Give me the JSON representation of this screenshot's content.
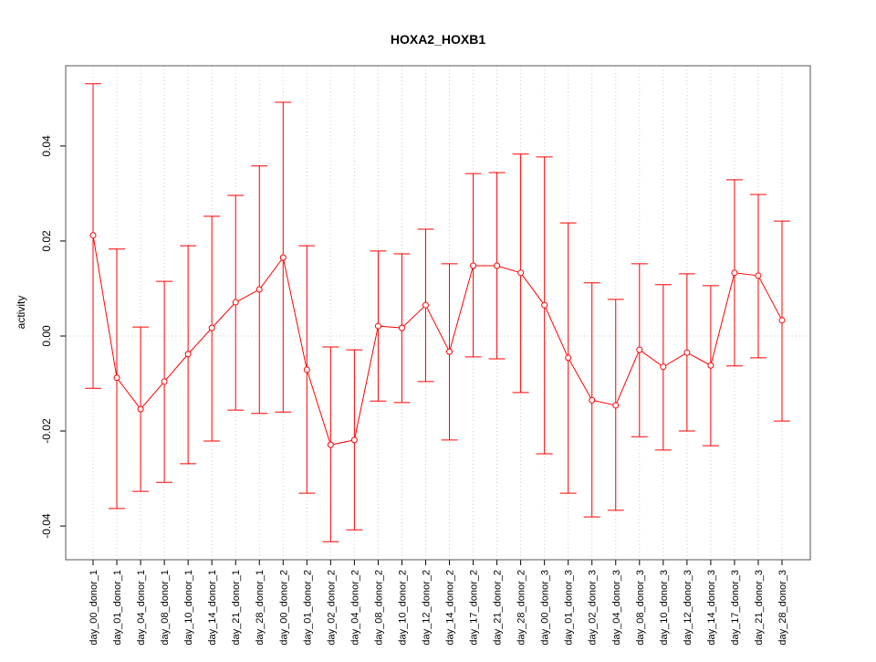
{
  "chart_data": {
    "type": "line",
    "title": "HOXA2_HOXB1",
    "xlabel": "",
    "ylabel": "activity",
    "ylim": [
      -0.0471,
      0.0569
    ],
    "yticks": [
      -0.04,
      -0.02,
      0.0,
      0.02,
      0.04
    ],
    "ytick_labels": [
      "-0.04",
      "-0.02",
      "0.00",
      "0.02",
      "0.04"
    ],
    "grid": true,
    "color": "#ff0000",
    "categories": [
      "day_00_donor_1",
      "day_01_donor_1",
      "day_04_donor_1",
      "day_08_donor_1",
      "day_10_donor_1",
      "day_14_donor_1",
      "day_21_donor_1",
      "day_28_donor_1",
      "day_00_donor_2",
      "day_01_donor_2",
      "day_02_donor_2",
      "day_04_donor_2",
      "day_08_donor_2",
      "day_10_donor_2",
      "day_12_donor_2",
      "day_14_donor_2",
      "day_17_donor_2",
      "day_21_donor_2",
      "day_28_donor_2",
      "day_00_donor_3",
      "day_01_donor_3",
      "day_02_donor_3",
      "day_04_donor_3",
      "day_08_donor_3",
      "day_10_donor_3",
      "day_12_donor_3",
      "day_14_donor_3",
      "day_17_donor_3",
      "day_21_donor_3",
      "day_28_donor_3"
    ],
    "values": [
      0.0212,
      -0.0088,
      -0.0154,
      -0.0096,
      -0.0038,
      0.0017,
      0.0071,
      0.0098,
      0.0165,
      -0.0071,
      -0.0229,
      -0.0219,
      0.0021,
      0.0017,
      0.0065,
      -0.0033,
      0.0148,
      0.0148,
      0.0133,
      0.0065,
      -0.0046,
      -0.0135,
      -0.0146,
      -0.0029,
      -0.0065,
      -0.0035,
      -0.0062,
      0.0133,
      0.0127,
      0.0033
    ],
    "upper": [
      0.0531,
      0.0183,
      0.0019,
      0.0115,
      0.019,
      0.0252,
      0.0296,
      0.0358,
      0.0492,
      0.019,
      -0.0023,
      -0.0029,
      0.0179,
      0.0173,
      0.0225,
      0.0152,
      0.0342,
      0.0344,
      0.0383,
      0.0377,
      0.0238,
      0.0112,
      0.0077,
      0.0152,
      0.0108,
      0.0131,
      0.0106,
      0.0329,
      0.0298,
      0.0242
    ],
    "lower": [
      -0.011,
      -0.0363,
      -0.0327,
      -0.0308,
      -0.0269,
      -0.0221,
      -0.0156,
      -0.0163,
      -0.016,
      -0.0331,
      -0.0433,
      -0.0408,
      -0.0137,
      -0.014,
      -0.0096,
      -0.0219,
      -0.0044,
      -0.0048,
      -0.0119,
      -0.0248,
      -0.0331,
      -0.0381,
      -0.0367,
      -0.0212,
      -0.024,
      -0.02,
      -0.0231,
      -0.0063,
      -0.0046,
      -0.0179
    ]
  }
}
